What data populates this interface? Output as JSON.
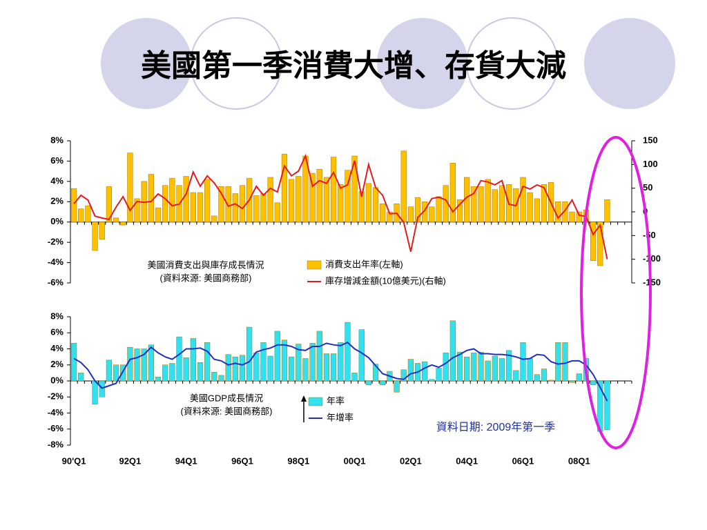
{
  "title": "美國第一季消費大增、存貨大減",
  "note": "資料日期: 2009年第一季",
  "chart_data": [
    {
      "type": "bar",
      "annotation": [
        "美國消費支出與庫存成長情況",
        "(資料來源: 美國商務部)"
      ],
      "ylim": [
        -6,
        8
      ],
      "yticks": [
        {
          "value": 8,
          "label": "8%"
        },
        {
          "value": 6,
          "label": "6%"
        },
        {
          "value": 4,
          "label": "4%"
        },
        {
          "value": 2,
          "label": "2%"
        },
        {
          "value": 0,
          "label": "0%"
        },
        {
          "value": -2,
          "label": "-2%"
        },
        {
          "value": -4,
          "label": "-4%"
        },
        {
          "value": -6,
          "label": "-6%"
        }
      ],
      "y2lim": [
        -150,
        150
      ],
      "y2ticks": [
        150,
        100,
        50,
        0,
        -50,
        -100,
        -150
      ],
      "series": [
        {
          "name": "消費支出年率(左軸)",
          "type": "bar",
          "color": "#ffc000",
          "values": [
            3.3,
            1.3,
            1.6,
            -2.8,
            -1.7,
            3.5,
            0.4,
            -0.3,
            6.8,
            2.3,
            4.0,
            4.7,
            1.4,
            3.6,
            4.3,
            3.6,
            4.5,
            2.9,
            2.9,
            4.2,
            0.6,
            3.5,
            3.5,
            2.8,
            3.6,
            4.3,
            2.6,
            2.8,
            4.4,
            1.9,
            6.7,
            4.2,
            4.5,
            6.5,
            4.8,
            5.2,
            4.4,
            6.4,
            3.7,
            5.1,
            6.5,
            3.0,
            3.8,
            3.4,
            1.8,
            1.0,
            1.8,
            7.0,
            1.5,
            2.4,
            2.0,
            1.5,
            2.5,
            3.6,
            5.8,
            2.2,
            4.4,
            3.5,
            3.5,
            4.2,
            3.2,
            3.6,
            3.7,
            3.3,
            4.4,
            2.9,
            2.3,
            3.7,
            3.9,
            2.0,
            2.0,
            1.0,
            1.0,
            1.2,
            -3.8,
            -4.3,
            2.2,
            null,
            null,
            null
          ]
        },
        {
          "name": "庫存增減金額(10億美元)(右軸)",
          "type": "line",
          "axis": "y2",
          "color": "#e41a1c",
          "values": [
            17,
            35,
            25,
            -9,
            -13,
            -16,
            10,
            32,
            3,
            22,
            20,
            22,
            38,
            28,
            13,
            16,
            38,
            84,
            54,
            76,
            61,
            39,
            12,
            17,
            7,
            25,
            54,
            35,
            50,
            42,
            97,
            76,
            86,
            118,
            54,
            66,
            60,
            83,
            50,
            57,
            108,
            32,
            100,
            51,
            35,
            -4,
            -3,
            -22,
            -84,
            -12,
            3,
            28,
            31,
            25,
            0,
            16,
            31,
            39,
            66,
            63,
            57,
            66,
            16,
            13,
            54,
            48,
            57,
            51,
            19,
            -13,
            3,
            25,
            -7,
            -10,
            -48,
            -28,
            -100,
            null,
            null,
            null
          ]
        }
      ]
    },
    {
      "type": "bar",
      "annotation": [
        "美國GDP成長情況",
        "(資料來源: 美國商務部)"
      ],
      "categories": [
        "90'Q1",
        null,
        null,
        null,
        null,
        null,
        null,
        null,
        "92Q1",
        null,
        null,
        null,
        null,
        null,
        null,
        null,
        "94Q1",
        null,
        null,
        null,
        null,
        null,
        null,
        null,
        "96Q1",
        null,
        null,
        null,
        null,
        null,
        null,
        null,
        "98Q1",
        null,
        null,
        null,
        null,
        null,
        null,
        null,
        "00Q1",
        null,
        null,
        null,
        null,
        null,
        null,
        null,
        "02Q1",
        null,
        null,
        null,
        null,
        null,
        null,
        null,
        "04Q1",
        null,
        null,
        null,
        null,
        null,
        null,
        null,
        "06Q1",
        null,
        null,
        null,
        null,
        null,
        null,
        null,
        "08Q1",
        null,
        null,
        null,
        null,
        null,
        null,
        null
      ],
      "ylim": [
        -8,
        8
      ],
      "yticks": [
        {
          "value": 8,
          "label": "8%"
        },
        {
          "value": 6,
          "label": "6%"
        },
        {
          "value": 4,
          "label": "4%"
        },
        {
          "value": 2,
          "label": "2%"
        },
        {
          "value": 0,
          "label": "0%"
        },
        {
          "value": -2,
          "label": "-2%"
        },
        {
          "value": -4,
          "label": "-4%"
        },
        {
          "value": -6,
          "label": "-6%"
        },
        {
          "value": -8,
          "label": "-8%"
        }
      ],
      "series": [
        {
          "name": "年率",
          "type": "bar",
          "color": "#33e0f0",
          "values": [
            4.7,
            1.0,
            0.0,
            -2.9,
            -2.0,
            2.6,
            2.0,
            2.0,
            4.2,
            4.0,
            4.0,
            4.5,
            0.5,
            2.0,
            2.2,
            5.5,
            2.9,
            5.3,
            2.3,
            4.8,
            1.1,
            0.7,
            3.3,
            3.0,
            3.2,
            6.7,
            3.5,
            4.8,
            3.1,
            6.2,
            5.1,
            3.0,
            4.6,
            2.8,
            4.7,
            6.2,
            3.4,
            3.4,
            4.8,
            7.3,
            1.0,
            6.4,
            -0.5,
            2.1,
            -0.5,
            1.2,
            -1.4,
            1.4,
            2.7,
            2.2,
            2.4,
            0.2,
            1.6,
            3.5,
            7.5,
            3.6,
            3.0,
            3.5,
            3.6,
            2.5,
            3.1,
            2.8,
            3.8,
            1.3,
            4.8,
            2.8,
            0.8,
            1.5,
            0.1,
            4.8,
            4.8,
            -0.2,
            0.9,
            2.8,
            -0.5,
            -6.3,
            -6.1,
            null,
            null,
            null
          ]
        },
        {
          "name": "年增率",
          "type": "line",
          "color": "#1f2fbf",
          "values": [
            2.8,
            2.3,
            1.4,
            0.0,
            -0.9,
            -0.6,
            -0.3,
            1.2,
            2.7,
            2.9,
            3.3,
            4.2,
            3.5,
            3.0,
            2.7,
            3.3,
            4.0,
            4.0,
            4.1,
            3.7,
            2.7,
            2.5,
            2.0,
            2.2,
            2.0,
            2.4,
            3.6,
            3.9,
            4.1,
            4.5,
            4.5,
            4.3,
            3.9,
            3.8,
            4.3,
            4.3,
            4.7,
            4.5,
            4.4,
            4.8,
            4.0,
            3.5,
            2.9,
            1.9,
            0.9,
            0.6,
            0.3,
            0.2,
            0.9,
            1.1,
            1.6,
            2.0,
            1.7,
            2.2,
            2.9,
            3.3,
            3.8,
            4.0,
            3.4,
            3.4,
            3.3,
            3.3,
            3.2,
            3.0,
            2.7,
            2.8,
            3.3,
            3.2,
            2.4,
            2.1,
            2.2,
            2.5,
            2.5,
            2.0,
            0.8,
            -0.8,
            -2.5,
            null,
            null,
            null
          ]
        }
      ]
    }
  ]
}
